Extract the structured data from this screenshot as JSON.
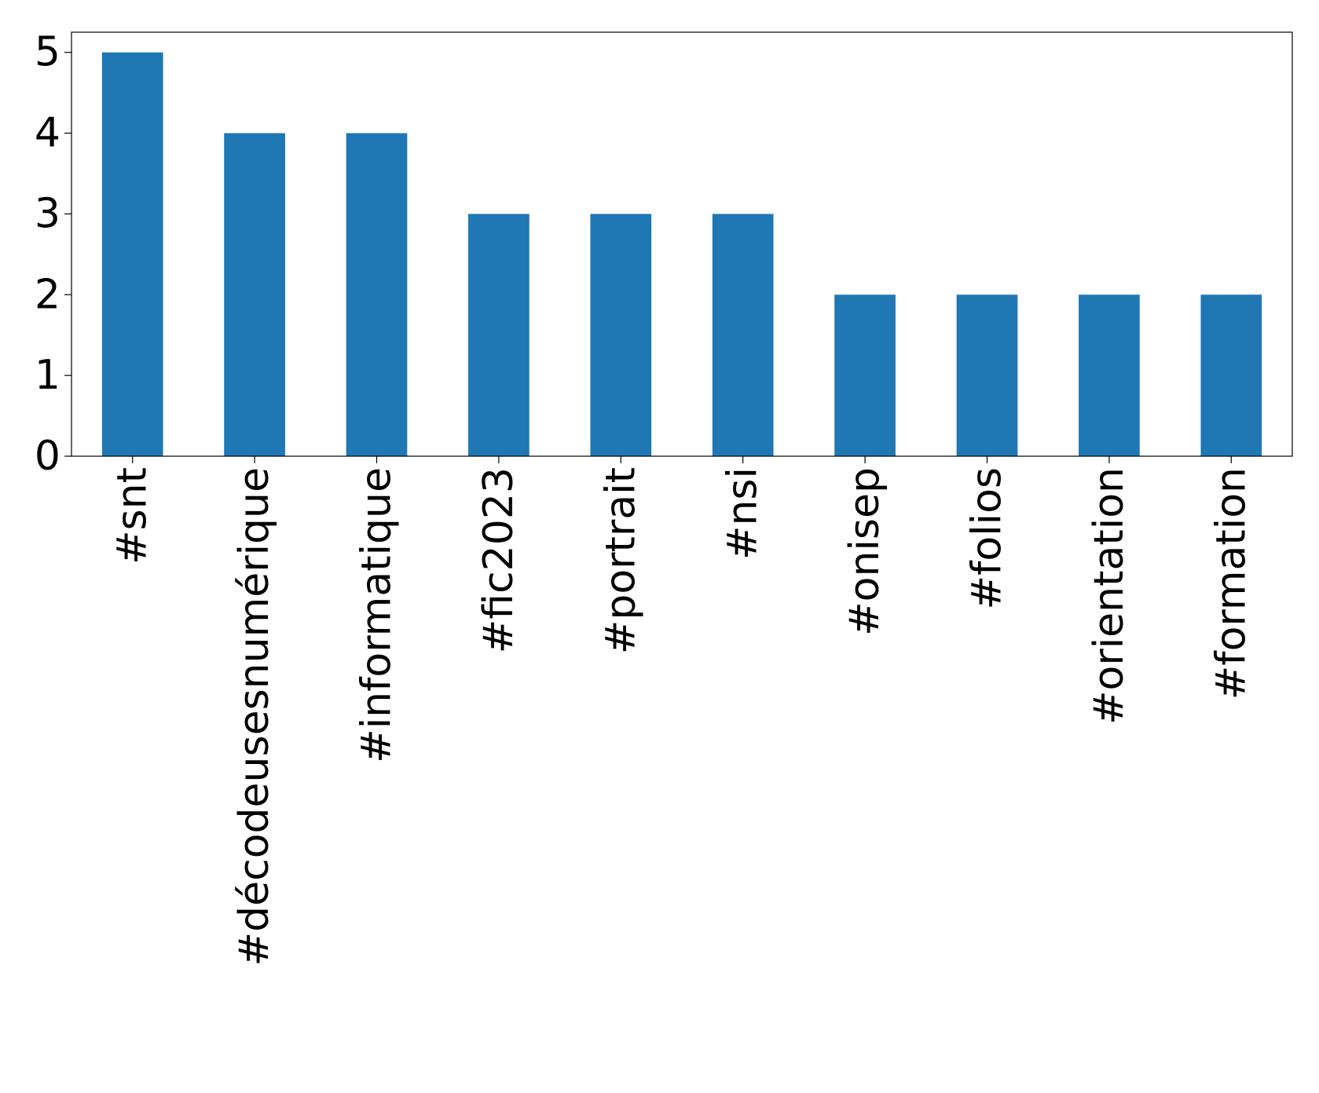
{
  "chart_data": {
    "type": "bar",
    "categories": [
      "#snt",
      "#décodeusesnumérique",
      "#informatique",
      "#fic2023",
      "#portrait",
      "#nsi",
      "#onisep",
      "#folios",
      "#orientation",
      "#formation"
    ],
    "values": [
      5,
      4,
      4,
      3,
      3,
      3,
      2,
      2,
      2,
      2
    ],
    "color": "#1f77b4",
    "ylim": [
      0,
      5.25
    ],
    "yticks": [
      0,
      1,
      2,
      3,
      4,
      5
    ],
    "grid": false
  }
}
